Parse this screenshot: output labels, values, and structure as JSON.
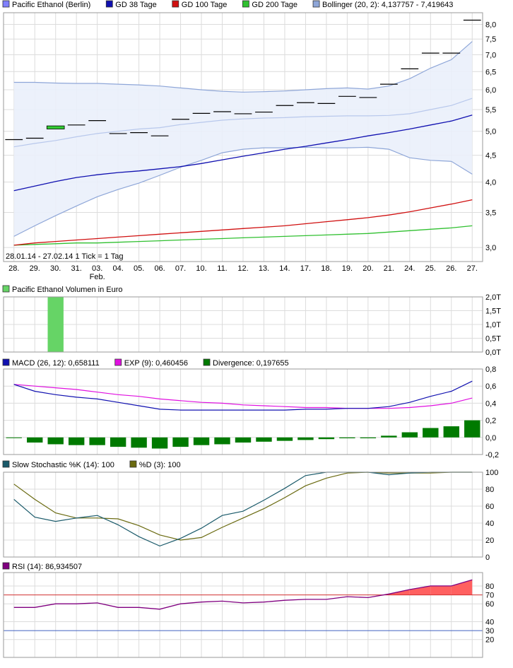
{
  "colors": {
    "price": "#000000",
    "ma38": "#1010b0",
    "ma100": "#d01010",
    "ma200": "#30c030",
    "bollinger_band": "#8ea6d8",
    "bollinger_fill": "#eaf0fb",
    "bollinger_mid": "#b8c8ec",
    "volume": "#66d466",
    "macd": "#1010b0",
    "exp": "#e010e0",
    "divergence": "#007a00",
    "stoch_k": "#1a5a6a",
    "stoch_d": "#6a6a10",
    "rsi": "#800080",
    "rsi_fill": "#ff6060",
    "rsi_70": "#d03030",
    "rsi_30": "#4060c0"
  },
  "price_panel": {
    "legend": [
      {
        "label": "Pacific Ethanol (Berlin)",
        "color": "#8080ff"
      },
      {
        "label": "GD 38 Tage",
        "color": "#1010b0"
      },
      {
        "label": "GD 100 Tage",
        "color": "#d01010"
      },
      {
        "label": "GD 200 Tage",
        "color": "#30c030"
      },
      {
        "label": "Bollinger (20, 2): 4,137757 - 7,419643",
        "color": "#8ea6d8"
      }
    ],
    "date_range": "28.01.14 - 27.02.14",
    "tick_note": "1 Tick = 1 Tag",
    "month_label": "Feb."
  },
  "volume_panel": {
    "legend": [
      {
        "label": "Pacific Ethanol Volumen in Euro",
        "color": "#66d466"
      }
    ]
  },
  "macd_panel": {
    "legend": [
      {
        "label": "MACD (26, 12): 0,658111",
        "color": "#1010b0"
      },
      {
        "label": "EXP (9): 0,460456",
        "color": "#e010e0"
      },
      {
        "label": "Divergence: 0,197655",
        "color": "#007a00"
      }
    ]
  },
  "stoch_panel": {
    "legend": [
      {
        "label": "Slow Stochastic %K (14): 100",
        "color": "#1a5a6a"
      },
      {
        "label": "%D (3): 100",
        "color": "#6a6a10"
      }
    ]
  },
  "rsi_panel": {
    "legend": [
      {
        "label": "RSI (14): 86,934507",
        "color": "#800080"
      }
    ]
  },
  "chart_data": [
    {
      "type": "line",
      "title": "Pacific Ethanol (Berlin)",
      "scale": "log",
      "categories": [
        "28.",
        "29.",
        "30.",
        "31.",
        "03.",
        "04.",
        "05.",
        "06.",
        "07.",
        "10.",
        "11.",
        "12.",
        "13.",
        "14.",
        "17.",
        "18.",
        "19.",
        "20.",
        "21.",
        "24.",
        "25.",
        "26.",
        "27."
      ],
      "y_ticks": [
        3.0,
        3.5,
        4.0,
        4.5,
        5.0,
        5.5,
        6.0,
        6.5,
        7.0,
        7.5,
        8.0
      ],
      "y_tick_labels": [
        "3,0",
        "3,5",
        "4,0",
        "4,5",
        "5,0",
        "5,5",
        "6,0",
        "6,5",
        "7,0",
        "7,5",
        "8,0"
      ],
      "ylim": [
        2.82,
        8.42
      ],
      "candles": [
        {
          "open": 4.82,
          "close": 4.82
        },
        {
          "open": 4.85,
          "close": 4.85
        },
        {
          "open": 5.05,
          "close": 5.12
        },
        {
          "open": 5.14,
          "close": 5.14
        },
        {
          "open": 5.24,
          "close": 5.24
        },
        {
          "open": 4.95,
          "close": 4.95
        },
        {
          "open": 4.97,
          "close": 4.97
        },
        {
          "open": 4.9,
          "close": 4.9
        },
        {
          "open": 5.27,
          "close": 5.27
        },
        {
          "open": 5.41,
          "close": 5.41
        },
        {
          "open": 5.45,
          "close": 5.45
        },
        {
          "open": 5.4,
          "close": 5.4
        },
        {
          "open": 5.44,
          "close": 5.44
        },
        {
          "open": 5.6,
          "close": 5.6
        },
        {
          "open": 5.67,
          "close": 5.67
        },
        {
          "open": 5.65,
          "close": 5.65
        },
        {
          "open": 5.83,
          "close": 5.83
        },
        {
          "open": 5.8,
          "close": 5.8
        },
        {
          "open": 6.15,
          "close": 6.15
        },
        {
          "open": 6.58,
          "close": 6.58
        },
        {
          "open": 7.05,
          "close": 7.05
        },
        {
          "open": 7.05,
          "close": 7.05
        },
        {
          "open": 8.15,
          "close": 8.15
        }
      ],
      "series": [
        {
          "name": "GD 38 Tage",
          "values": [
            3.85,
            3.93,
            4.01,
            4.08,
            4.13,
            4.17,
            4.2,
            4.24,
            4.28,
            4.34,
            4.41,
            4.48,
            4.55,
            4.62,
            4.68,
            4.75,
            4.82,
            4.9,
            4.97,
            5.05,
            5.14,
            5.23,
            5.37
          ]
        },
        {
          "name": "GD 100 Tage",
          "values": [
            3.03,
            3.06,
            3.08,
            3.1,
            3.12,
            3.14,
            3.16,
            3.18,
            3.2,
            3.22,
            3.24,
            3.26,
            3.28,
            3.3,
            3.33,
            3.36,
            3.39,
            3.42,
            3.46,
            3.51,
            3.57,
            3.63,
            3.7
          ]
        },
        {
          "name": "GD 200 Tage",
          "values": [
            3.03,
            3.04,
            3.05,
            3.06,
            3.06,
            3.07,
            3.08,
            3.09,
            3.1,
            3.11,
            3.12,
            3.13,
            3.14,
            3.15,
            3.16,
            3.17,
            3.18,
            3.19,
            3.21,
            3.23,
            3.25,
            3.27,
            3.3
          ]
        },
        {
          "name": "Bollinger upper",
          "values": [
            6.2,
            6.2,
            6.18,
            6.17,
            6.17,
            6.15,
            6.13,
            6.1,
            6.05,
            6.0,
            5.96,
            5.94,
            5.95,
            5.97,
            6.0,
            6.03,
            6.05,
            6.02,
            6.1,
            6.3,
            6.6,
            6.85,
            7.42
          ]
        },
        {
          "name": "Bollinger lower",
          "values": [
            3.15,
            3.3,
            3.45,
            3.6,
            3.75,
            3.87,
            3.98,
            4.12,
            4.27,
            4.4,
            4.55,
            4.62,
            4.65,
            4.65,
            4.66,
            4.65,
            4.65,
            4.66,
            4.62,
            4.45,
            4.4,
            4.38,
            4.14
          ]
        },
        {
          "name": "Bollinger middle",
          "values": [
            4.67,
            4.74,
            4.8,
            4.88,
            4.95,
            5.0,
            5.05,
            5.08,
            5.15,
            5.2,
            5.25,
            5.28,
            5.3,
            5.31,
            5.33,
            5.34,
            5.35,
            5.35,
            5.36,
            5.4,
            5.5,
            5.6,
            5.78
          ]
        }
      ]
    },
    {
      "type": "bar",
      "title": "Pacific Ethanol Volumen in Euro",
      "y_ticks": [
        0,
        0.5,
        1.0,
        1.5,
        2.0
      ],
      "y_tick_labels": [
        "0,0T",
        "0,5T",
        "1,0T",
        "1,5T",
        "2,0T"
      ],
      "ylim": [
        0,
        2.0
      ],
      "values": [
        0,
        0,
        2.0,
        0,
        0,
        0,
        0,
        0,
        0,
        0,
        0,
        0,
        0,
        0,
        0,
        0,
        0,
        0,
        0,
        0,
        0,
        0,
        0
      ]
    },
    {
      "type": "line",
      "title": "MACD",
      "y_ticks": [
        -0.2,
        0,
        0.2,
        0.4,
        0.6,
        0.8
      ],
      "y_tick_labels": [
        "-0,2",
        "0,0",
        "0,2",
        "0,4",
        "0,6",
        "0,8"
      ],
      "ylim": [
        -0.2,
        0.8
      ],
      "series": [
        {
          "name": "MACD (26, 12)",
          "values": [
            0.62,
            0.54,
            0.5,
            0.47,
            0.45,
            0.41,
            0.37,
            0.33,
            0.32,
            0.32,
            0.32,
            0.32,
            0.32,
            0.32,
            0.33,
            0.33,
            0.34,
            0.34,
            0.36,
            0.41,
            0.48,
            0.54,
            0.658
          ]
        },
        {
          "name": "EXP (9)",
          "values": [
            0.62,
            0.6,
            0.58,
            0.56,
            0.53,
            0.5,
            0.48,
            0.45,
            0.43,
            0.41,
            0.4,
            0.38,
            0.37,
            0.36,
            0.35,
            0.35,
            0.34,
            0.34,
            0.34,
            0.35,
            0.37,
            0.4,
            0.46
          ]
        },
        {
          "name": "Divergence",
          "values": [
            0.0,
            -0.06,
            -0.08,
            -0.09,
            -0.09,
            -0.11,
            -0.12,
            -0.13,
            -0.11,
            -0.09,
            -0.08,
            -0.06,
            -0.05,
            -0.04,
            -0.03,
            -0.02,
            -0.01,
            -0.01,
            0.02,
            0.06,
            0.11,
            0.13,
            0.2
          ]
        }
      ]
    },
    {
      "type": "line",
      "title": "Slow Stochastic",
      "y_ticks": [
        0,
        20,
        40,
        60,
        80,
        100
      ],
      "y_tick_labels": [
        "0",
        "20",
        "40",
        "60",
        "80",
        "100"
      ],
      "ylim": [
        0,
        100
      ],
      "series": [
        {
          "name": "%K (14)",
          "values": [
            68,
            47,
            42,
            46,
            49,
            38,
            24,
            13,
            22,
            34,
            49,
            54,
            67,
            81,
            96,
            100,
            100,
            100,
            97,
            99,
            100,
            100,
            100
          ]
        },
        {
          "name": "%D (3)",
          "values": [
            86,
            68,
            52,
            46,
            46,
            45,
            37,
            26,
            20,
            23,
            35,
            46,
            57,
            70,
            84,
            93,
            99,
            100,
            99,
            99,
            99,
            100,
            100
          ]
        }
      ]
    },
    {
      "type": "area",
      "title": "RSI (14)",
      "y_ticks": [
        20,
        40,
        60,
        80
      ],
      "y_tick_labels": [
        "20",
        "40",
        "60",
        "80"
      ],
      "reference_lines": [
        {
          "value": 70,
          "label": "70"
        },
        {
          "value": 30,
          "label": "30"
        }
      ],
      "ylim": [
        0,
        95
      ],
      "values": [
        56,
        56,
        60,
        60,
        61,
        56,
        56,
        54,
        60,
        62,
        63,
        61,
        62,
        64,
        65,
        65,
        68,
        67,
        71,
        76,
        80,
        80,
        86.9
      ]
    }
  ]
}
